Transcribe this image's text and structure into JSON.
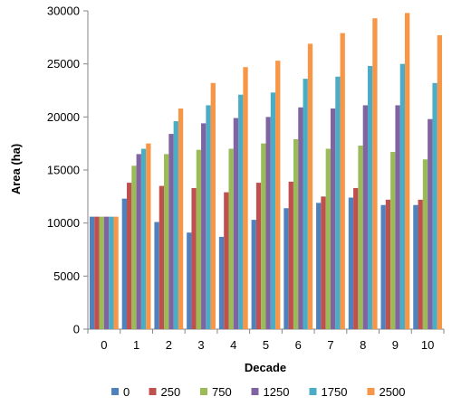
{
  "chart_data": {
    "type": "bar",
    "title": "",
    "xlabel": "Decade",
    "ylabel": "Area (ha)",
    "ylim": [
      0,
      30000
    ],
    "yticks": [
      0,
      5000,
      10000,
      15000,
      20000,
      25000,
      30000
    ],
    "grid": false,
    "legend_position": "bottom",
    "categories": [
      "0",
      "1",
      "2",
      "3",
      "4",
      "5",
      "6",
      "7",
      "8",
      "9",
      "10"
    ],
    "series": [
      {
        "name": "0",
        "color": "#4F81BD",
        "values": [
          10600,
          12300,
          10100,
          9100,
          8700,
          10300,
          11400,
          11900,
          12400,
          11700,
          11700
        ]
      },
      {
        "name": "250",
        "color": "#C0504D",
        "values": [
          10600,
          13800,
          13500,
          13300,
          12900,
          13800,
          13900,
          12500,
          13300,
          12200,
          12200
        ]
      },
      {
        "name": "750",
        "color": "#9BBB59",
        "values": [
          10600,
          15400,
          16500,
          16900,
          17000,
          17500,
          17900,
          17000,
          17300,
          16700,
          16000
        ]
      },
      {
        "name": "1250",
        "color": "#8064A2",
        "values": [
          10600,
          16500,
          18400,
          19400,
          19900,
          20000,
          20900,
          20800,
          21100,
          21100,
          19800
        ]
      },
      {
        "name": "1750",
        "color": "#4BACC6",
        "values": [
          10600,
          17000,
          19600,
          21100,
          22100,
          22300,
          23600,
          23800,
          24800,
          25000,
          23200
        ]
      },
      {
        "name": "2500",
        "color": "#F79646",
        "values": [
          10600,
          17500,
          20800,
          23200,
          24700,
          25300,
          26900,
          27900,
          29300,
          29800,
          27700
        ]
      }
    ]
  }
}
